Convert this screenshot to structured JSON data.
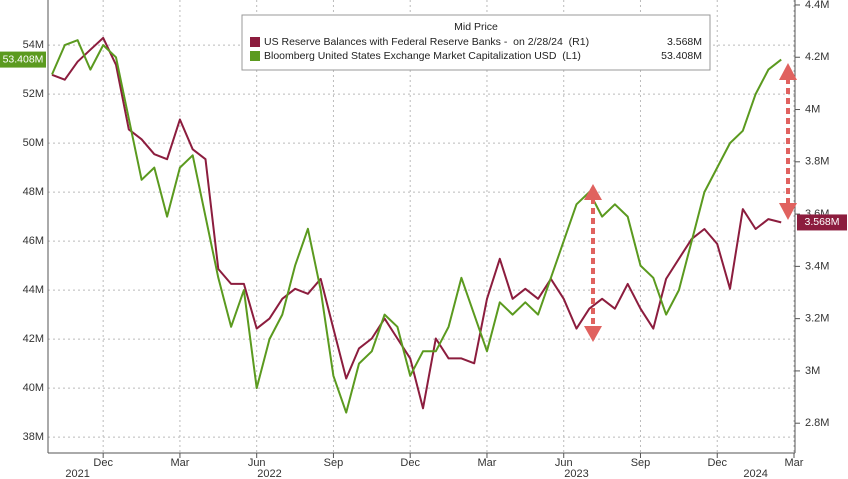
{
  "chart_data": {
    "type": "line",
    "legend_title": "Mid Price",
    "categories": [
      null,
      null,
      null,
      null,
      "Dec",
      null,
      null,
      null,
      null,
      null,
      "Mar",
      null,
      null,
      null,
      null,
      null,
      "Jun",
      null,
      null,
      null,
      null,
      null,
      "Sep",
      null,
      null,
      null,
      null,
      null,
      "Dec",
      null,
      null,
      null,
      null,
      null,
      "Mar",
      null,
      null,
      null,
      null,
      null,
      "Jun",
      null,
      null,
      null,
      null,
      null,
      "Sep",
      null,
      null,
      null,
      null,
      null,
      "Dec",
      null,
      null,
      null,
      null,
      null,
      "Mar"
    ],
    "year_labels": [
      null,
      null,
      "2021",
      null,
      null,
      null,
      null,
      null,
      null,
      null,
      null,
      null,
      null,
      null,
      null,
      null,
      null,
      "2022",
      null,
      null,
      null,
      null,
      null,
      null,
      null,
      null,
      null,
      null,
      null,
      null,
      null,
      null,
      null,
      null,
      null,
      null,
      null,
      null,
      null,
      null,
      null,
      "2023",
      null,
      null,
      null,
      null,
      null,
      null,
      null,
      null,
      null,
      null,
      null,
      null,
      null,
      "2024",
      null,
      null,
      null
    ],
    "series": [
      {
        "name": "US Reserve Balances with Federal Reserve Banks -  on 2/28/24  (R1)",
        "last_label": "3.568M",
        "color": "#8c1d3e",
        "axis": "y2",
        "values": [
          4.133,
          4.114,
          4.183,
          4.229,
          4.274,
          4.171,
          3.924,
          3.886,
          3.829,
          3.81,
          3.962,
          3.848,
          3.81,
          3.39,
          3.333,
          3.333,
          3.162,
          3.2,
          3.276,
          3.314,
          3.295,
          3.352,
          3.162,
          2.971,
          3.086,
          3.124,
          3.2,
          3.124,
          3.048,
          2.857,
          3.124,
          3.048,
          3.048,
          3.029,
          3.276,
          3.429,
          3.276,
          3.314,
          3.276,
          3.352,
          3.276,
          3.162,
          3.238,
          3.276,
          3.238,
          3.333,
          3.238,
          3.162,
          3.352,
          3.429,
          3.505,
          3.543,
          3.486,
          3.314,
          3.619,
          3.543,
          3.581,
          3.568,
          null
        ]
      },
      {
        "name": "Bloomberg United States Exchange Market Capitalization USD  (L1)",
        "last_label": "53.408M",
        "color": "#5b9a1f",
        "axis": "y",
        "values": [
          52.8,
          54.0,
          54.2,
          53.0,
          54.0,
          53.5,
          51.0,
          48.5,
          49.0,
          47.0,
          49.0,
          49.5,
          47.0,
          44.5,
          42.5,
          44.0,
          40.0,
          42.0,
          43.0,
          45.0,
          46.5,
          44.0,
          40.5,
          39.0,
          41.0,
          41.5,
          43.0,
          42.5,
          40.5,
          41.5,
          41.5,
          42.5,
          44.5,
          43.0,
          41.5,
          43.5,
          43.0,
          43.5,
          43.0,
          44.5,
          46.0,
          47.5,
          48.0,
          47.0,
          47.5,
          47.0,
          45.0,
          44.5,
          43.0,
          44.0,
          46.0,
          48.0,
          49.0,
          50.0,
          50.5,
          52.0,
          53.0,
          53.408,
          null
        ]
      }
    ],
    "ylim": [
      37.35,
      55.84
    ],
    "yticks": [
      {
        "value": 38,
        "label": "38M"
      },
      {
        "value": 40,
        "label": "40M"
      },
      {
        "value": 42,
        "label": "42M"
      },
      {
        "value": 44,
        "label": "44M"
      },
      {
        "value": 46,
        "label": "46M"
      },
      {
        "value": 48,
        "label": "48M"
      },
      {
        "value": 50,
        "label": "50M"
      },
      {
        "value": 52,
        "label": "52M"
      },
      {
        "value": 54,
        "label": "54M"
      }
    ],
    "y2lim": [
      2.686,
      4.419
    ],
    "y2ticks": [
      {
        "value": 2.8,
        "label": "2.8M"
      },
      {
        "value": 3,
        "label": "3M"
      },
      {
        "value": 3.2,
        "label": "3.2M"
      },
      {
        "value": 3.4,
        "label": "3.4M"
      },
      {
        "value": 3.6,
        "label": "3.6M"
      },
      {
        "value": 3.8,
        "label": "3.8M"
      },
      {
        "value": 4,
        "label": "4M"
      },
      {
        "value": 4.2,
        "label": "4.2M"
      },
      {
        "value": 4.4,
        "label": "4.4M"
      }
    ],
    "grid": true
  }
}
